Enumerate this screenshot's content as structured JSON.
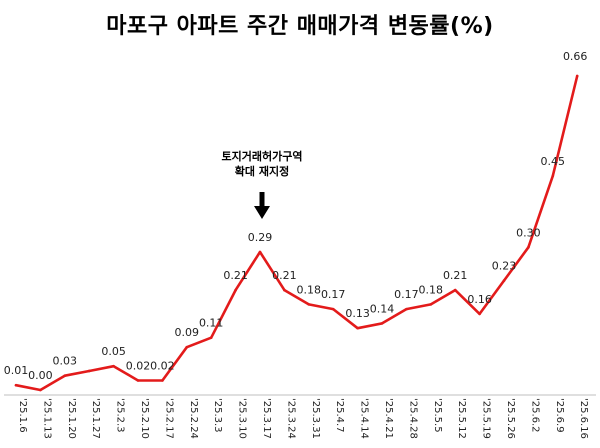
{
  "chart_data": {
    "type": "line",
    "title": "마포구 아파트 주간 매매가격 변동률(%)",
    "xlabel": "",
    "ylabel": "",
    "ylim": [
      0,
      0.66
    ],
    "grid": false,
    "legend": "none",
    "line_color": "#e31b1b",
    "categories": [
      "'25.1.6",
      "'25.1.13",
      "'25.1.20",
      "'25.1.27",
      "'25.2.3",
      "'25.2.10",
      "'25.2.17",
      "'25.2.24",
      "'25.3.3",
      "'25.3.10",
      "'25.3.17",
      "'25.3.24",
      "'25.3.31",
      "'25.4.7",
      "'25.4.14",
      "'25.4.21",
      "'25.4.28",
      "'25.5.5",
      "'25.5.12",
      "'25.5.19",
      "'25.5.26",
      "'25.6.2",
      "'25.6.9",
      "'25.6.16"
    ],
    "values": [
      0.01,
      0.0,
      0.03,
      0.04,
      0.05,
      0.02,
      0.02,
      0.09,
      0.11,
      0.21,
      0.29,
      0.21,
      0.18,
      0.17,
      0.13,
      0.14,
      0.17,
      0.18,
      0.21,
      0.16,
      0.23,
      0.3,
      0.45,
      0.66
    ],
    "data_labels": [
      "0.01",
      "0.00",
      "0.03",
      "",
      "0.05",
      "0.02",
      "0.02",
      "0.09",
      "0.11",
      "0.21",
      "0.29",
      "0.21",
      "0.18",
      "0.17",
      "0.13",
      "0.14",
      "0.17",
      "0.18",
      "0.21",
      "0.16",
      "0.23",
      "0.30",
      "0.45",
      "0.66"
    ],
    "annotation": {
      "lines": [
        "토지거래허가구역",
        "확대 재지정"
      ],
      "category": "'25.3.17"
    }
  }
}
